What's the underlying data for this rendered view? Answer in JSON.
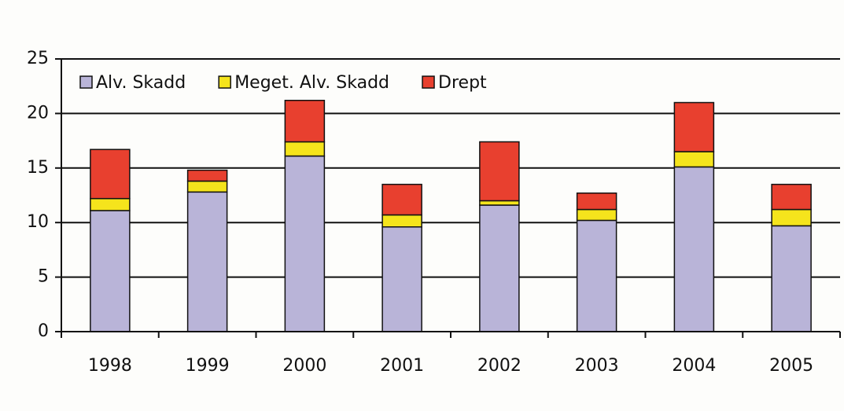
{
  "chart_data": {
    "type": "stacked-bar",
    "categories": [
      "1998",
      "1999",
      "2000",
      "2001",
      "2002",
      "2003",
      "2004",
      "2005"
    ],
    "series": [
      {
        "name": "Alv. Skadd",
        "color": "#b9b4d8",
        "values": [
          11.1,
          12.8,
          16.1,
          9.6,
          11.6,
          10.2,
          15.1,
          9.7
        ]
      },
      {
        "name": "Meget. Alv. Skadd",
        "color": "#f5e41c",
        "values": [
          1.1,
          1,
          1.3,
          1.1,
          0.4,
          1,
          1.4,
          1.5
        ]
      },
      {
        "name": "Drept",
        "color": "#e8402f",
        "values": [
          4.5,
          1,
          3.8,
          2.8,
          5.4,
          1.5,
          4.5,
          2.3
        ]
      }
    ],
    "ylim": [
      0,
      25
    ],
    "yticks": [
      0,
      5,
      10,
      15,
      20,
      25
    ],
    "grid": true,
    "legend": "top-left"
  }
}
